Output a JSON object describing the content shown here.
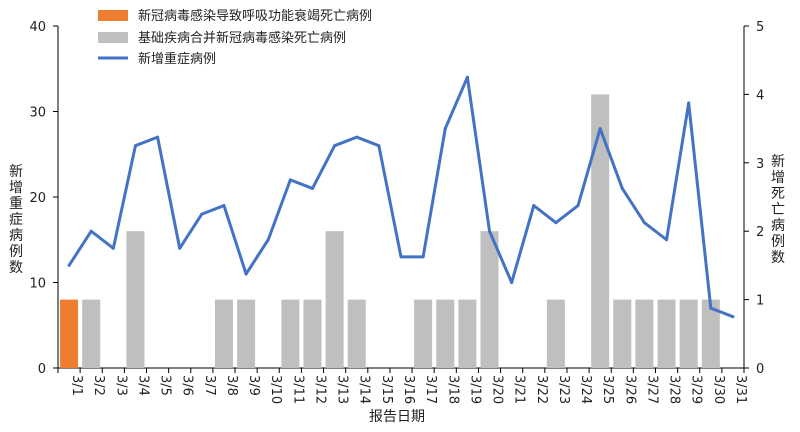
{
  "chart_data": {
    "type": "bar",
    "categories": [
      "3/1",
      "3/2",
      "3/3",
      "3/4",
      "3/5",
      "3/6",
      "3/7",
      "3/8",
      "3/9",
      "3/10",
      "3/11",
      "3/12",
      "3/13",
      "3/14",
      "3/15",
      "3/16",
      "3/17",
      "3/18",
      "3/19",
      "3/20",
      "3/21",
      "3/22",
      "3/23",
      "3/24",
      "3/25",
      "3/26",
      "3/27",
      "3/28",
      "3/29",
      "3/30",
      "3/31"
    ],
    "series": [
      {
        "name": "新冠病毒感染导致呼吸功能衰竭死亡病例",
        "kind": "bar",
        "axis": "right",
        "color": "#ED7D31",
        "values": [
          1,
          0,
          0,
          0,
          0,
          0,
          0,
          0,
          0,
          0,
          0,
          0,
          0,
          0,
          0,
          0,
          0,
          0,
          0,
          0,
          0,
          0,
          0,
          0,
          0,
          0,
          0,
          0,
          0,
          0,
          0
        ]
      },
      {
        "name": "基础疾病合并新冠病毒感染死亡病例",
        "kind": "bar",
        "axis": "right",
        "color": "#BFBFBF",
        "values": [
          0,
          1,
          0,
          2,
          0,
          0,
          0,
          1,
          1,
          0,
          1,
          1,
          2,
          1,
          0,
          0,
          1,
          1,
          1,
          2,
          0,
          0,
          1,
          0,
          4,
          1,
          1,
          1,
          1,
          1,
          0
        ]
      },
      {
        "name": "新增重症病例",
        "kind": "line",
        "axis": "left",
        "color": "#4472C4",
        "values": [
          12,
          16,
          14,
          26,
          27,
          14,
          18,
          19,
          11,
          15,
          22,
          21,
          26,
          27,
          26,
          13,
          13,
          28,
          34,
          16,
          10,
          19,
          17,
          19,
          28,
          21,
          17,
          15,
          31,
          7,
          6
        ]
      }
    ],
    "ylabel_left": "新增重症病例数",
    "ylabel_right": "新增死亡病例数",
    "xlabel": "报告日期",
    "ylim_left": [
      0,
      40
    ],
    "yticks_left": [
      0,
      10,
      20,
      30,
      40
    ],
    "ylim_right": [
      0,
      5
    ],
    "yticks_right": [
      0,
      1,
      2,
      3,
      4,
      5
    ],
    "legend_position": "top-left",
    "grid": false
  }
}
